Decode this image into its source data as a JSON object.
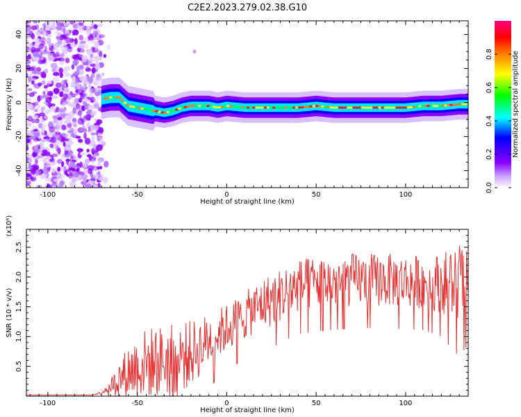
{
  "title": "C2E2.2023.279.02.38.G10",
  "chart_data": [
    {
      "type": "heatmap",
      "xlabel": "Height of straight line (km)",
      "ylabel": "Frequency (Hz)",
      "xlim": [
        -112,
        135
      ],
      "ylim": [
        -50,
        48
      ],
      "x_ticks": [
        -100,
        -50,
        0,
        50,
        100
      ],
      "y_ticks": [
        -40,
        -20,
        0,
        20,
        40
      ],
      "colorbar": {
        "label": "Normalized spectral amplitude",
        "range": [
          0,
          1
        ],
        "ticks": [
          "0.0",
          "0.2",
          "0.4",
          "0.6",
          "0.8"
        ],
        "colors": [
          "#ffffff",
          "#8a00ff",
          "#0000ff",
          "#00ffff",
          "#00ff00",
          "#ffff00",
          "#ff8000",
          "#ff0000",
          "#ff0080"
        ]
      },
      "noise_region_x": [
        -112,
        -70
      ],
      "ridge": {
        "x": [
          -70,
          -65,
          -60,
          -55,
          -50,
          -45,
          -40,
          -35,
          -30,
          -25,
          -20,
          -15,
          -10,
          -5,
          0,
          10,
          20,
          30,
          40,
          50,
          60,
          70,
          80,
          90,
          100,
          110,
          120,
          130,
          135
        ],
        "y": [
          2,
          3,
          3,
          -2,
          -3,
          -4,
          -5,
          -6,
          -5,
          -3,
          -2,
          -2,
          -2,
          -3,
          -2,
          -3,
          -3,
          -3,
          -3,
          -2,
          -3,
          -3,
          -3,
          -3,
          -3,
          -2,
          -2,
          -1,
          -1
        ]
      }
    },
    {
      "type": "line",
      "xlabel": "Height of straight line (km)",
      "ylabel": "SNR (10 * v/v)",
      "y_multiplier": "(x10⁴)",
      "xlim": [
        -112,
        135
      ],
      "ylim": [
        0,
        2.8
      ],
      "x_ticks": [
        -100,
        -50,
        0,
        50,
        100
      ],
      "y_ticks": [
        0.5,
        1.0,
        1.5,
        2.0,
        2.5
      ],
      "series": [
        {
          "color": "#e83030",
          "envelope": {
            "x": [
              -112,
              -75,
              -70,
              -65,
              -60,
              -55,
              -50,
              -45,
              -40,
              -35,
              -30,
              -25,
              -20,
              -15,
              -10,
              -5,
              0,
              5,
              10,
              15,
              20,
              25,
              30,
              35,
              40,
              50,
              60,
              70,
              80,
              90,
              100,
              110,
              120,
              125,
              130,
              135
            ],
            "mean": [
              0.02,
              0.02,
              0.06,
              0.18,
              0.3,
              0.42,
              0.5,
              0.55,
              0.58,
              0.6,
              0.62,
              0.66,
              0.72,
              0.82,
              0.95,
              1.05,
              1.15,
              1.25,
              1.35,
              1.45,
              1.55,
              1.62,
              1.7,
              1.78,
              1.85,
              1.9,
              1.92,
              1.95,
              1.95,
              1.95,
              1.93,
              1.92,
              1.9,
              1.9,
              1.92,
              1.95
            ],
            "spread": [
              0.0,
              0.0,
              0.03,
              0.12,
              0.3,
              0.45,
              0.55,
              0.6,
              0.6,
              0.6,
              0.6,
              0.6,
              0.55,
              0.5,
              0.45,
              0.42,
              0.4,
              0.4,
              0.4,
              0.42,
              0.45,
              0.45,
              0.45,
              0.45,
              0.45,
              0.45,
              0.45,
              0.45,
              0.45,
              0.45,
              0.45,
              0.45,
              0.5,
              0.6,
              0.7,
              0.6
            ]
          }
        }
      ]
    }
  ]
}
